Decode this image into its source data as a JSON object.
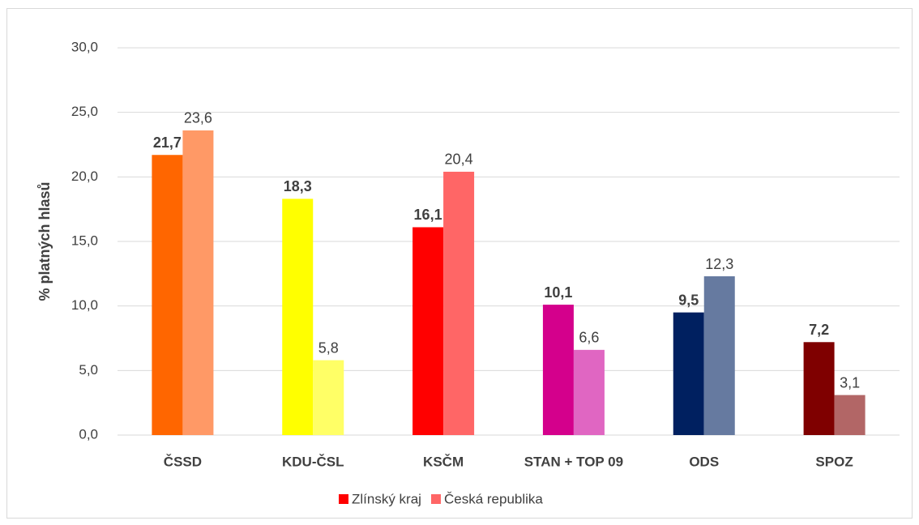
{
  "chart_data": {
    "type": "bar",
    "y_label": "% platných hlasů",
    "categories": [
      "ČSSD",
      "KDU-ČSL",
      "KSČM",
      "STAN + TOP 09",
      "ODS",
      "SPOZ"
    ],
    "series": [
      {
        "name": "Zlínský kraj",
        "color": "#ff0000",
        "colors": [
          "#ff6600",
          "#ffff00",
          "#ff0000",
          "#d4008c",
          "#002060",
          "#7f0000"
        ],
        "values": [
          21.7,
          18.3,
          16.1,
          10.1,
          9.5,
          7.2
        ],
        "value_labels": [
          "21,7",
          "18,3",
          "16,1",
          "10,1",
          "9,5",
          "7,2"
        ]
      },
      {
        "name": "Česká republika",
        "color": "#ff6666",
        "colors": [
          "#ff9966",
          "#ffff66",
          "#ff6666",
          "#e066c2",
          "#667aa0",
          "#b26666"
        ],
        "values": [
          23.6,
          5.8,
          20.4,
          6.6,
          12.3,
          3.1
        ],
        "value_labels": [
          "23,6",
          "5,8",
          "20,4",
          "6,6",
          "12,3",
          "3,1"
        ]
      }
    ],
    "ylim": [
      0,
      30
    ],
    "yticks": [
      {
        "value": 0,
        "label": "0,0"
      },
      {
        "value": 5,
        "label": "5,0"
      },
      {
        "value": 10,
        "label": "10,0"
      },
      {
        "value": 15,
        "label": "15,0"
      },
      {
        "value": 20,
        "label": "20,0"
      },
      {
        "value": 25,
        "label": "25,0"
      },
      {
        "value": 30,
        "label": "30,0"
      }
    ],
    "grid": true,
    "legend": "bottom"
  }
}
